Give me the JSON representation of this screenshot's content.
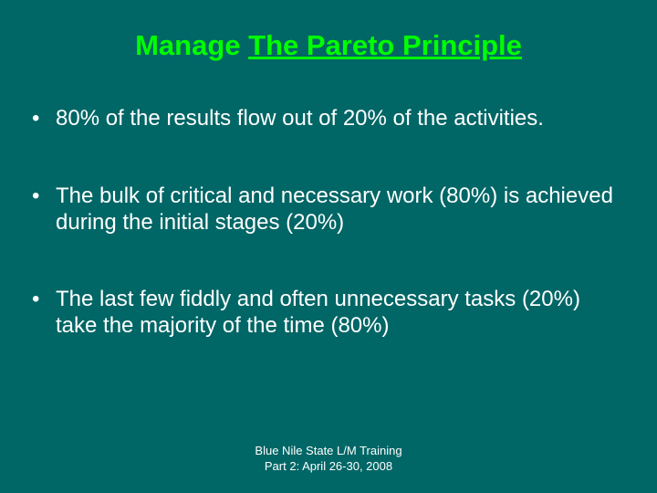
{
  "colors": {
    "background": "#006666",
    "title": "#00ff00",
    "text": "#ffffff"
  },
  "title": {
    "word1": "Manage",
    "rest": "The Pareto Principle"
  },
  "bullets": [
    "80% of the results flow out of 20% of the activities.",
    "The bulk of critical and necessary work (80%) is achieved during the initial stages (20%)",
    "The last few fiddly and often unnecessary tasks (20%) take the majority of the time (80%)"
  ],
  "footer": {
    "line1": "Blue Nile State L/M Training",
    "line2": "Part 2: April 26-30, 2008"
  }
}
